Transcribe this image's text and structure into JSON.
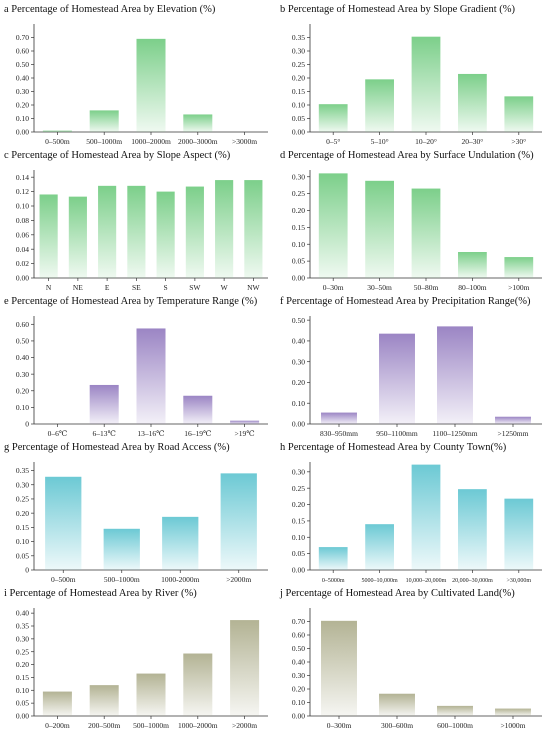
{
  "colors": {
    "green": "#7ccf8a",
    "purple": "#9b85c4",
    "cyan": "#6cc9d4",
    "olive": "#b3b394"
  },
  "chart_data": [
    {
      "id": "a",
      "type": "bar",
      "title": "a Percentage of Homestead Area by Elevation (%)",
      "categories": [
        "0–500m",
        "500–1000m",
        "1000–2000m",
        "2000–3000m",
        ">3000m"
      ],
      "values": [
        0.01,
        0.16,
        0.69,
        0.13,
        0.0
      ],
      "ylim": [
        0,
        0.8
      ],
      "yticks": [
        "0.00",
        "0.10",
        "0.20",
        "0.30",
        "0.40",
        "0.50",
        "0.60",
        "0.70"
      ],
      "color": "green"
    },
    {
      "id": "b",
      "type": "bar",
      "title": "b Percentage of Homestead Area by Slope Gradient (%)",
      "categories": [
        "0–5°",
        "5–10°",
        "10–20°",
        "20–30°",
        ">30°"
      ],
      "values": [
        0.103,
        0.195,
        0.353,
        0.215,
        0.132
      ],
      "ylim": [
        0,
        0.4
      ],
      "yticks": [
        "0.00",
        "0.05",
        "0.10",
        "0.15",
        "0.20",
        "0.25",
        "0.30",
        "0.35"
      ],
      "color": "green"
    },
    {
      "id": "c",
      "type": "bar",
      "title": "c Percentage of Homestead Area by Slope Aspect (%)",
      "categories": [
        "N",
        "NE",
        "E",
        "SE",
        "S",
        "SW",
        "W",
        "NW"
      ],
      "values": [
        0.116,
        0.113,
        0.128,
        0.128,
        0.12,
        0.127,
        0.136,
        0.136
      ],
      "ylim": [
        0,
        0.15
      ],
      "yticks": [
        "0.00",
        "0.02",
        "0.04",
        "0.06",
        "0.08",
        "0.10",
        "0.12",
        "0.14"
      ],
      "color": "green"
    },
    {
      "id": "d",
      "type": "bar",
      "title": "d Percentage of Homestead Area by Surface Undulation (%)",
      "categories": [
        "0–30m",
        "30–50m",
        "50–80m",
        "80–100m",
        ">100m"
      ],
      "values": [
        0.31,
        0.288,
        0.265,
        0.077,
        0.062
      ],
      "ylim": [
        0,
        0.32
      ],
      "yticks": [
        "0.00",
        "0.05",
        "0.10",
        "0.15",
        "0.20",
        "0.25",
        "0.30"
      ],
      "color": "green"
    },
    {
      "id": "e",
      "type": "bar",
      "title": "e Percentage of Homestead Area by Temperature Range (%)",
      "categories": [
        "0–6℃",
        "6–13℃",
        "13–16℃",
        "16–19℃",
        ">19℃"
      ],
      "values": [
        0.0,
        0.235,
        0.575,
        0.17,
        0.02
      ],
      "ylim": [
        0,
        0.65
      ],
      "yticks": [
        "0",
        "0.10",
        "0.20",
        "0.30",
        "0.40",
        "0.50",
        "0.60"
      ],
      "color": "purple"
    },
    {
      "id": "f",
      "type": "bar",
      "title": "f Percentage of Homestead Area by Precipitation Range(%)",
      "categories": [
        "830–950mm",
        "950–1100mm",
        "1100–1250mm",
        ">1250mm"
      ],
      "values": [
        0.055,
        0.435,
        0.47,
        0.035
      ],
      "ylim": [
        0,
        0.52
      ],
      "yticks": [
        "0.00",
        "0.10",
        "0.20",
        "0.30",
        "0.40",
        "0.50"
      ],
      "color": "purple"
    },
    {
      "id": "g",
      "type": "bar",
      "title": "g Percentage of Homestead Area by Road Access (%)",
      "categories": [
        "0–500m",
        "500–1000m",
        "1000-2000m",
        ">2000m"
      ],
      "values": [
        0.328,
        0.145,
        0.187,
        0.34
      ],
      "ylim": [
        0,
        0.38
      ],
      "yticks": [
        "0",
        "0.05",
        "0.10",
        "0.15",
        "0.20",
        "0.25",
        "0.30",
        "0.35"
      ],
      "color": "cyan"
    },
    {
      "id": "h",
      "type": "bar",
      "title": "h Percentage of Homestead Area by County Town(%)",
      "categories": [
        "0–5000m",
        "5000–10,000m",
        "10,000–20,000m",
        "20,000–30,000m",
        ">30,000m"
      ],
      "values": [
        0.07,
        0.14,
        0.322,
        0.247,
        0.218
      ],
      "ylim": [
        0,
        0.33
      ],
      "yticks": [
        "0.00",
        "0.05",
        "0.10",
        "0.15",
        "0.20",
        "0.25",
        "0.30"
      ],
      "color": "cyan"
    },
    {
      "id": "i",
      "type": "bar",
      "title": "i Percentage of Homestead Area by River (%)",
      "categories": [
        "0–200m",
        "200–500m",
        "500–1000m",
        "1000–2000m",
        ">2000m"
      ],
      "values": [
        0.095,
        0.12,
        0.165,
        0.243,
        0.373
      ],
      "ylim": [
        0,
        0.42
      ],
      "yticks": [
        "0.00",
        "0.05",
        "0.10",
        "0.15",
        "0.20",
        "0.25",
        "0.30",
        "0.35",
        "0.40"
      ],
      "color": "olive"
    },
    {
      "id": "j",
      "type": "bar",
      "title": "j Percentage of Homestead Area by Cultivated Land(%)",
      "categories": [
        "0–300m",
        "300–600m",
        "600–1000m",
        ">1000m"
      ],
      "values": [
        0.705,
        0.165,
        0.075,
        0.055
      ],
      "ylim": [
        0,
        0.8
      ],
      "yticks": [
        "0.00",
        "0.10",
        "0.20",
        "0.30",
        "0.40",
        "0.50",
        "0.60",
        "0.70"
      ],
      "color": "olive"
    }
  ]
}
